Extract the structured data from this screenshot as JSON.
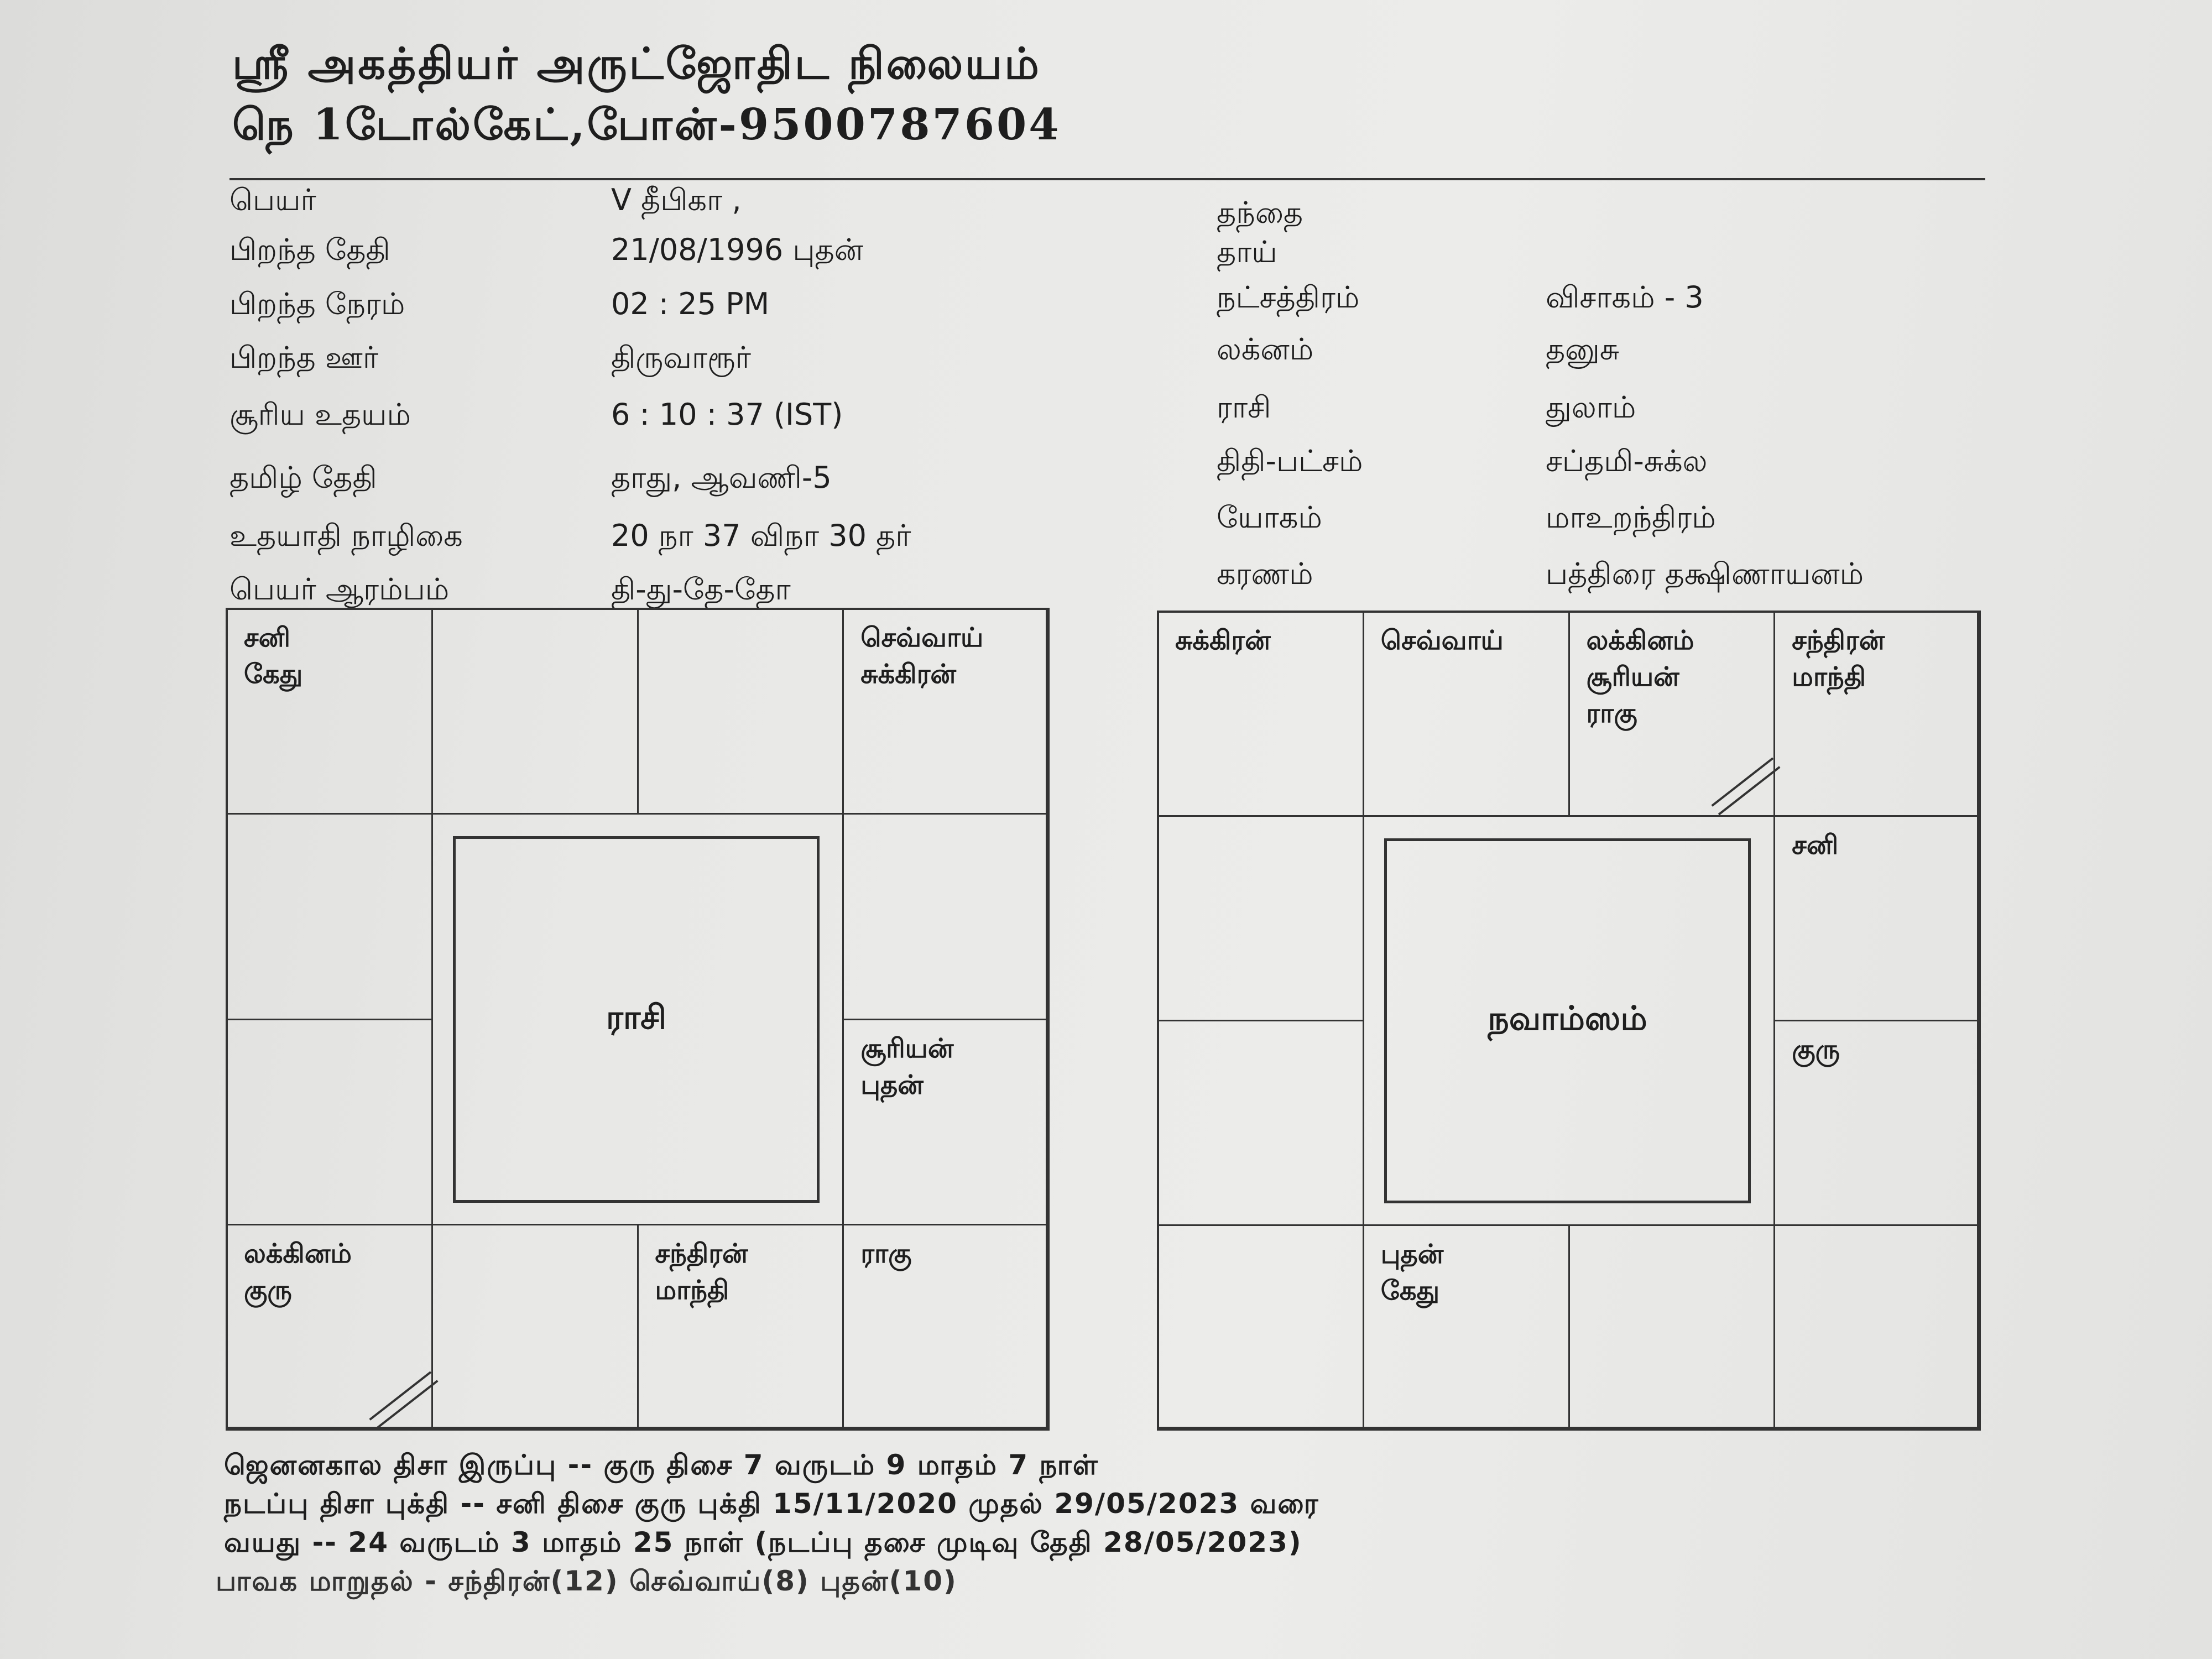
{
  "header": {
    "line1": "ஸ்ரீ அகத்தியர் அருட்ஜோதிட நிலையம்",
    "line2": "நெ 1டோல்கேட்,போன்-9500787604"
  },
  "left_details": [
    {
      "label": "பெயர்",
      "value": "V தீபிகா ,"
    },
    {
      "label": "பிறந்த தேதி",
      "value": "21/08/1996 புதன்"
    },
    {
      "label": "பிறந்த நேரம்",
      "value": "02 : 25 PM"
    },
    {
      "label": "பிறந்த ஊர்",
      "value": "திருவாரூர்"
    },
    {
      "label": "சூரிய உதயம்",
      "value": "6 : 10 : 37 (IST)"
    },
    {
      "label": "தமிழ் தேதி",
      "value": "தாது, ஆவணி-5"
    },
    {
      "label": "உதயாதி நாழிகை",
      "value": "20 நா 37 விநா 30 தர்"
    },
    {
      "label": "பெயர் ஆரம்பம்",
      "value": "தி-து-தே-தோ"
    }
  ],
  "right_details": [
    {
      "label": "தந்தை",
      "value": ""
    },
    {
      "label": "தாய்",
      "value": ""
    },
    {
      "label": "நட்சத்திரம்",
      "value": "விசாகம் - 3"
    },
    {
      "label": "லக்னம்",
      "value": "தனுசு"
    },
    {
      "label": "ராசி",
      "value": "துலாம்"
    },
    {
      "label": "திதி-பட்சம்",
      "value": "சப்தமி-சுக்ல"
    },
    {
      "label": "யோகம்",
      "value": "மாஉறந்திரம்"
    },
    {
      "label": "கரணம்",
      "value": "பத்திரை தக்ஷிணாயனம்"
    }
  ],
  "charts": [
    {
      "title": "ராசி",
      "houses": [
        {
          "planets": [
            "சனி",
            "கேது"
          ]
        },
        {
          "planets": []
        },
        {
          "planets": []
        },
        {
          "planets": [
            "செவ்வாய்",
            "சுக்கிரன்"
          ]
        },
        {
          "planets": []
        },
        {
          "planets": [
            "சூரியன்",
            "புதன்"
          ]
        },
        {
          "planets": [
            "ராகு"
          ]
        },
        {
          "planets": [
            "சந்திரன்",
            "மாந்தி"
          ]
        },
        {
          "planets": []
        },
        {
          "planets": [
            "லக்கினம்",
            "குரு"
          ]
        },
        {
          "planets": []
        },
        {
          "planets": []
        }
      ]
    },
    {
      "title": "நவாம்ஸம்",
      "houses": [
        {
          "planets": [
            "சுக்கிரன்"
          ]
        },
        {
          "planets": [
            "செவ்வாய்"
          ]
        },
        {
          "planets": [
            "லக்கினம்",
            "சூரியன்",
            "ராகு"
          ]
        },
        {
          "planets": [
            "சந்திரன்",
            "மாந்தி"
          ]
        },
        {
          "planets": [
            "சனி"
          ]
        },
        {
          "planets": [
            "குரு"
          ]
        },
        {
          "planets": []
        },
        {
          "planets": []
        },
        {
          "planets": [
            "புதன்",
            "கேது"
          ]
        },
        {
          "planets": []
        },
        {
          "planets": []
        },
        {
          "planets": []
        }
      ]
    }
  ],
  "footer": [
    "ஜெனனகால திசா இருப்பு -- குரு  திசை 7 வருடம் 9 மாதம் 7 நாள்",
    "நடப்பு திசா புக்தி -- சனி திசை குரு புக்தி  15/11/2020 முதல் 29/05/2023 வரை",
    "வயது -- 24 வருடம் 3 மாதம் 25 நாள்  (நடப்பு தசை முடிவு தேதி 28/05/2023)",
    "பாவக மாறுதல் -  சந்திரன்(12) செவ்வாய்(8) புதன்(10)"
  ]
}
